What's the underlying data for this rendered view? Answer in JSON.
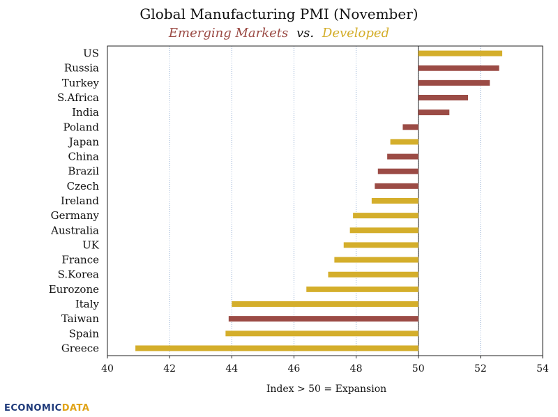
{
  "chart_data": {
    "type": "bar",
    "orientation": "horizontal",
    "title": "Global Manufacturing PMI (November)",
    "subtitle": {
      "part1": "Emerging Markets",
      "part2": "vs.",
      "part3": "Developed"
    },
    "xlabel": "Index > 50 = Expansion",
    "xlim": [
      40,
      54
    ],
    "xticks": [
      40,
      42,
      44,
      46,
      48,
      50,
      52,
      54
    ],
    "baseline": 50,
    "grid": true,
    "colors": {
      "emerging": "#9b4b45",
      "developed": "#d4ae2b"
    },
    "categories": [
      "US",
      "Russia",
      "Turkey",
      "S.Africa",
      "India",
      "Poland",
      "Japan",
      "China",
      "Brazil",
      "Czech",
      "Ireland",
      "Germany",
      "Australia",
      "UK",
      "France",
      "S.Korea",
      "Eurozone",
      "Italy",
      "Taiwan",
      "Spain",
      "Greece"
    ],
    "values": [
      52.7,
      52.6,
      52.3,
      51.6,
      51.0,
      49.5,
      49.1,
      49.0,
      48.7,
      48.6,
      48.5,
      47.9,
      47.8,
      47.6,
      47.3,
      47.1,
      46.4,
      44.0,
      43.9,
      43.8,
      40.9
    ],
    "groups": [
      "developed",
      "emerging",
      "emerging",
      "emerging",
      "emerging",
      "emerging",
      "developed",
      "emerging",
      "emerging",
      "emerging",
      "developed",
      "developed",
      "developed",
      "developed",
      "developed",
      "developed",
      "developed",
      "developed",
      "emerging",
      "developed",
      "developed"
    ]
  },
  "logo": {
    "part1": "ECONOMIC",
    "part2": "DATA"
  }
}
